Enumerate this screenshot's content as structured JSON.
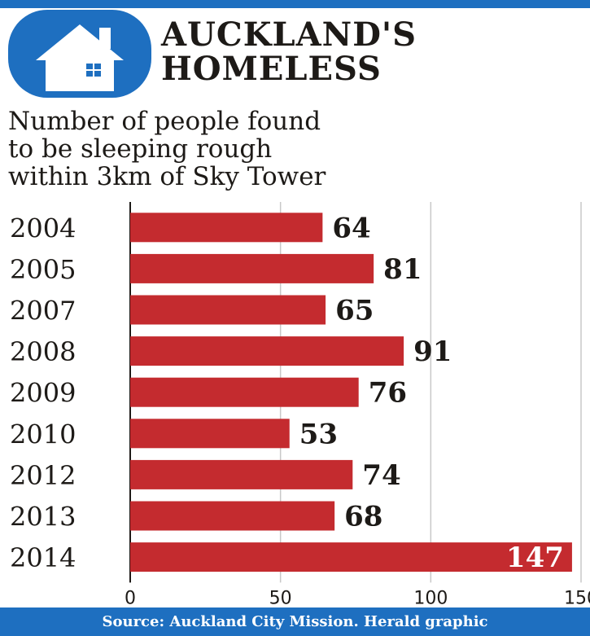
{
  "colors": {
    "brand_blue": "#1e6fc0",
    "bar_red": "#c42b2f",
    "text_dark": "#1d1a17",
    "grid": "#c8c8c8"
  },
  "header": {
    "icon": "house-icon",
    "title_line1": "AUCKLAND'S",
    "title_line2": "HOMELESS"
  },
  "subtitle": {
    "line1": "Number of people found",
    "line2": "to be sleeping rough",
    "line3": "within 3km of Sky Tower"
  },
  "chart_data": {
    "type": "bar",
    "orientation": "horizontal",
    "categories": [
      "2004",
      "2005",
      "2007",
      "2008",
      "2009",
      "2010",
      "2012",
      "2013",
      "2014"
    ],
    "values": [
      64,
      81,
      65,
      91,
      76,
      53,
      74,
      68,
      147
    ],
    "xlim": [
      0,
      150
    ],
    "xticks": [
      "0",
      "50",
      "100",
      "150"
    ],
    "grid": true,
    "title": "Number of people found to be sleeping rough within 3km of Sky Tower"
  },
  "footer": {
    "source": "Source: Auckland City Mission. Herald graphic"
  }
}
